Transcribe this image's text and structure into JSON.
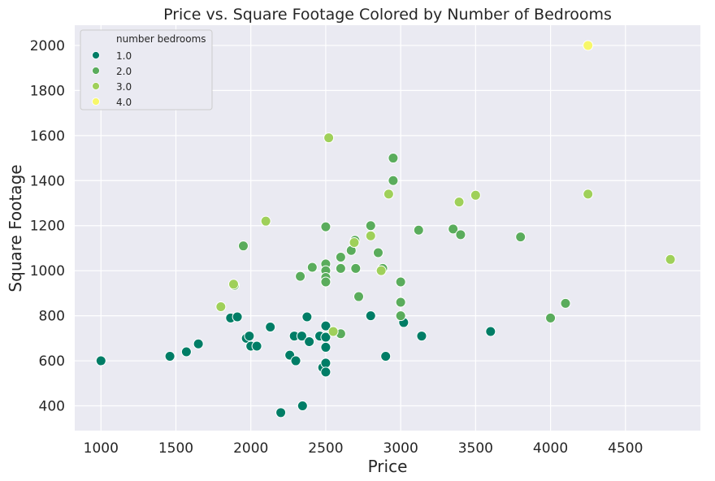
{
  "chart_data": {
    "type": "scatter",
    "title": "Price vs. Square Footage Colored by Number of Bedrooms",
    "xlabel": "Price",
    "ylabel": "Square Footage",
    "xlim": [
      825,
      5000
    ],
    "ylim": [
      290,
      2090
    ],
    "xticks": [
      1000,
      1500,
      2000,
      2500,
      3000,
      3500,
      4000,
      4500
    ],
    "yticks": [
      400,
      600,
      800,
      1000,
      1200,
      1400,
      1600,
      1800,
      2000
    ],
    "grid": true,
    "legend": {
      "title": "number bedrooms",
      "placement": "top-left",
      "entries": [
        {
          "label": "1.0",
          "color": "#007d66"
        },
        {
          "label": "2.0",
          "color": "#5aac5c"
        },
        {
          "label": "3.0",
          "color": "#9fd05a"
        },
        {
          "label": "4.0",
          "color": "#f7f76a"
        }
      ]
    },
    "colors": {
      "1.0": "#007d66",
      "2.0": "#5aac5c",
      "3.0": "#9fd05a",
      "4.0": "#f7f76a"
    },
    "series": [
      {
        "name": "1.0",
        "points": [
          [
            1000,
            600
          ],
          [
            1460,
            620
          ],
          [
            1570,
            640
          ],
          [
            1650,
            675
          ],
          [
            1865,
            790
          ],
          [
            1910,
            795
          ],
          [
            1970,
            700
          ],
          [
            1990,
            710
          ],
          [
            2000,
            665
          ],
          [
            2040,
            665
          ],
          [
            2130,
            750
          ],
          [
            2200,
            370
          ],
          [
            2260,
            625
          ],
          [
            2290,
            710
          ],
          [
            2300,
            600
          ],
          [
            2340,
            710
          ],
          [
            2345,
            400
          ],
          [
            2375,
            795
          ],
          [
            2390,
            685
          ],
          [
            2460,
            710
          ],
          [
            2480,
            570
          ],
          [
            2500,
            755
          ],
          [
            2500,
            705
          ],
          [
            2500,
            660
          ],
          [
            2500,
            590
          ],
          [
            2500,
            550
          ],
          [
            2800,
            800
          ],
          [
            2900,
            620
          ],
          [
            3020,
            770
          ],
          [
            3140,
            710
          ],
          [
            3600,
            730
          ]
        ]
      },
      {
        "name": "2.0",
        "points": [
          [
            1890,
            935
          ],
          [
            1950,
            1110
          ],
          [
            2330,
            975
          ],
          [
            2410,
            1015
          ],
          [
            2500,
            1195
          ],
          [
            2500,
            1030
          ],
          [
            2500,
            1000
          ],
          [
            2500,
            970
          ],
          [
            2500,
            950
          ],
          [
            2600,
            1010
          ],
          [
            2600,
            1060
          ],
          [
            2600,
            720
          ],
          [
            2670,
            1090
          ],
          [
            2695,
            1135
          ],
          [
            2700,
            1010
          ],
          [
            2720,
            885
          ],
          [
            2800,
            1200
          ],
          [
            2850,
            1080
          ],
          [
            2880,
            1010
          ],
          [
            2950,
            1500
          ],
          [
            2950,
            1400
          ],
          [
            3000,
            950
          ],
          [
            3000,
            860
          ],
          [
            3000,
            800
          ],
          [
            3120,
            1180
          ],
          [
            3350,
            1185
          ],
          [
            3400,
            1160
          ],
          [
            3800,
            1150
          ],
          [
            4000,
            790
          ],
          [
            4100,
            855
          ]
        ]
      },
      {
        "name": "3.0",
        "points": [
          [
            1800,
            840
          ],
          [
            1885,
            940
          ],
          [
            2100,
            1220
          ],
          [
            2520,
            1590
          ],
          [
            2550,
            730
          ],
          [
            2690,
            1125
          ],
          [
            2800,
            1155
          ],
          [
            2870,
            1000
          ],
          [
            2920,
            1340
          ],
          [
            3390,
            1305
          ],
          [
            3500,
            1335
          ],
          [
            4250,
            1340
          ],
          [
            4800,
            1050
          ]
        ]
      },
      {
        "name": "4.0",
        "points": [
          [
            4250,
            2000
          ]
        ]
      }
    ]
  }
}
